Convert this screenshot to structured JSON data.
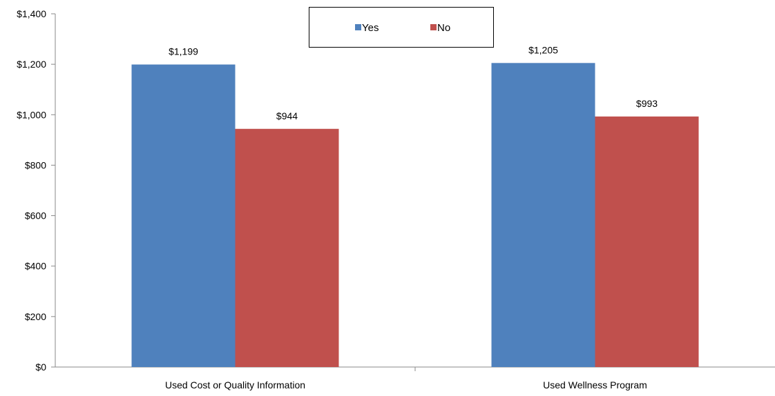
{
  "chart_data": {
    "type": "bar",
    "categories": [
      "Used Cost or Quality Information",
      "Used Wellness Program"
    ],
    "series": [
      {
        "name": "Yes",
        "values": [
          1199,
          1205
        ],
        "color": "#4F81BD",
        "labels": [
          "$1,199",
          "$1,205"
        ]
      },
      {
        "name": "No",
        "values": [
          944,
          993
        ],
        "color": "#C0504D",
        "labels": [
          "$944",
          "$993"
        ]
      }
    ],
    "ylim": [
      0,
      1400
    ],
    "yticks": [
      0,
      200,
      400,
      600,
      800,
      1000,
      1200,
      1400
    ],
    "ytick_labels": [
      "$0",
      "$200",
      "$400",
      "$600",
      "$800",
      "$1,000",
      "$1,200",
      "$1,400"
    ],
    "title": "",
    "xlabel": "",
    "ylabel": "",
    "grid": false,
    "legend_position": "top-center"
  }
}
